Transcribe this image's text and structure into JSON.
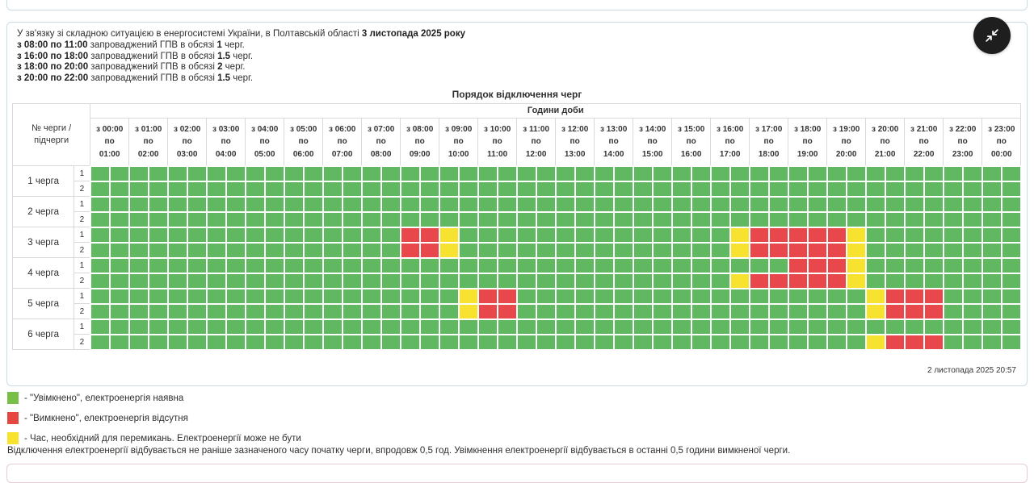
{
  "alert_card": {
    "intro_lines": [
      [
        {
          "t": "У зв'язку зі складною ситуацією в енергосистемі України, в Полтавській області ",
          "b": 0
        },
        {
          "t": "3 листопада 2025 року",
          "b": 1
        }
      ],
      [
        {
          "t": "з 08:00 по 11:00",
          "b": 1
        },
        {
          "t": " запроваджений ГПВ в обсязі ",
          "b": 0
        },
        {
          "t": "1",
          "b": 1
        },
        {
          "t": " черг.",
          "b": 0
        }
      ],
      [
        {
          "t": "з 16:00 по 18:00",
          "b": 1
        },
        {
          "t": " запроваджений ГПВ в обсязі ",
          "b": 0
        },
        {
          "t": "1.5",
          "b": 1
        },
        {
          "t": " черг.",
          "b": 0
        }
      ],
      [
        {
          "t": "з 18:00 по 20:00",
          "b": 1
        },
        {
          "t": " запроваджений ГПВ в обсязі ",
          "b": 0
        },
        {
          "t": "2",
          "b": 1
        },
        {
          "t": " черг.",
          "b": 0
        }
      ],
      [
        {
          "t": "з 20:00 по 22:00",
          "b": 1
        },
        {
          "t": " запроваджений ГПВ в обсязі ",
          "b": 0
        },
        {
          "t": "1.5",
          "b": 1
        },
        {
          "t": " черг.",
          "b": 0
        }
      ]
    ],
    "generated_at": "2 листопада 2025 20:57"
  },
  "table": {
    "title": "Порядок відключення черг",
    "corner_header": "№ черги /\nпідчерги",
    "hours_header": "Години доби",
    "prefix_from": "з",
    "prefix_to": "по",
    "columns": [
      {
        "from": "00:00",
        "to": "01:00"
      },
      {
        "from": "01:00",
        "to": "02:00"
      },
      {
        "from": "02:00",
        "to": "03:00"
      },
      {
        "from": "03:00",
        "to": "04:00"
      },
      {
        "from": "04:00",
        "to": "05:00"
      },
      {
        "from": "05:00",
        "to": "06:00"
      },
      {
        "from": "06:00",
        "to": "07:00"
      },
      {
        "from": "07:00",
        "to": "08:00"
      },
      {
        "from": "08:00",
        "to": "09:00"
      },
      {
        "from": "09:00",
        "to": "10:00"
      },
      {
        "from": "10:00",
        "to": "11:00"
      },
      {
        "from": "11:00",
        "to": "12:00"
      },
      {
        "from": "12:00",
        "to": "13:00"
      },
      {
        "from": "13:00",
        "to": "14:00"
      },
      {
        "from": "14:00",
        "to": "15:00"
      },
      {
        "from": "15:00",
        "to": "16:00"
      },
      {
        "from": "16:00",
        "to": "17:00"
      },
      {
        "from": "17:00",
        "to": "18:00"
      },
      {
        "from": "18:00",
        "to": "19:00"
      },
      {
        "from": "19:00",
        "to": "20:00"
      },
      {
        "from": "20:00",
        "to": "21:00"
      },
      {
        "from": "21:00",
        "to": "22:00"
      },
      {
        "from": "22:00",
        "to": "23:00"
      },
      {
        "from": "23:00",
        "to": "00:00"
      }
    ],
    "state_colors": {
      "G": "#60b961",
      "R": "#e8484b",
      "Y": "#f7e32f"
    },
    "rows": [
      {
        "queue": "1 черга",
        "sub": "1",
        "slots": "GGGGGGGGGGGGGGGGGGGGGGGGGGGGGGGGGGGGGGGGGGGGGGGG"
      },
      {
        "queue": "1 черга",
        "sub": "2",
        "slots": "GGGGGGGGGGGGGGGGGGGGGGGGGGGGGGGGGGGGGGGGGGGGGGGG"
      },
      {
        "queue": "2 черга",
        "sub": "1",
        "slots": "GGGGGGGGGGGGGGGGGGGGGGGGGGGGGGGGGGGGGGGGGGGGGGGG"
      },
      {
        "queue": "2 черга",
        "sub": "2",
        "slots": "GGGGGGGGGGGGGGGGGGGGGGGGGGGGGGGGGGGGGGGGGGGGGGGG"
      },
      {
        "queue": "3 черга",
        "sub": "1",
        "slots": "GGGGGGGGGGGGGGGGRRYGGGGGGGGGGGGGGYRRRRRYGGGGGGGG"
      },
      {
        "queue": "3 черга",
        "sub": "2",
        "slots": "GGGGGGGGGGGGGGGGRRYGGGGGGGGGGGGGGYRRRRRYGGGGGGGG"
      },
      {
        "queue": "4 черга",
        "sub": "1",
        "slots": "GGGGGGGGGGGGGGGGGGGGGGGGGGGGGGGGGGGGRRRYGGGGGGGG"
      },
      {
        "queue": "4 черга",
        "sub": "2",
        "slots": "GGGGGGGGGGGGGGGGGGGGGGGGGGGGGGGGGYRRRRRYGGGGGGGG"
      },
      {
        "queue": "5 черга",
        "sub": "1",
        "slots": "GGGGGGGGGGGGGGGGGGGYRRGGGGGGGGGGGGGGGGGGYRRRGGGG"
      },
      {
        "queue": "5 черга",
        "sub": "2",
        "slots": "GGGGGGGGGGGGGGGGGGGYRRGGGGGGGGGGGGGGGGGGYRRRGGGG"
      },
      {
        "queue": "6 черга",
        "sub": "1",
        "slots": "GGGGGGGGGGGGGGGGGGGGGGGGGGGGGGGGGGGGGGGGGGGGGGGG"
      },
      {
        "queue": "6 черга",
        "sub": "2",
        "slots": "GGGGGGGGGGGGGGGGGGGGGGGGGGGGGGGGGGGGGGGGYRRRGGGG"
      }
    ]
  },
  "legend": {
    "items": [
      {
        "state": "on",
        "color": "#77bf45",
        "label": "- \"Увімкнено\", електроенергія наявна"
      },
      {
        "state": "off",
        "color": "#e64540",
        "label": "- \"Вимкнено\", електроенергія відсутня"
      },
      {
        "state": "switching",
        "color": "#f7e32f",
        "label": "- Час, необхідний для перемикань. Електроенергії може не бути"
      }
    ]
  },
  "note": "Відключення електроенергії відбувається не раніше зазначеного часу початку черги, впродовж 0,5 год. Увімкнення електроенергії відбувається в останні 0,5 години вимкненої черги."
}
